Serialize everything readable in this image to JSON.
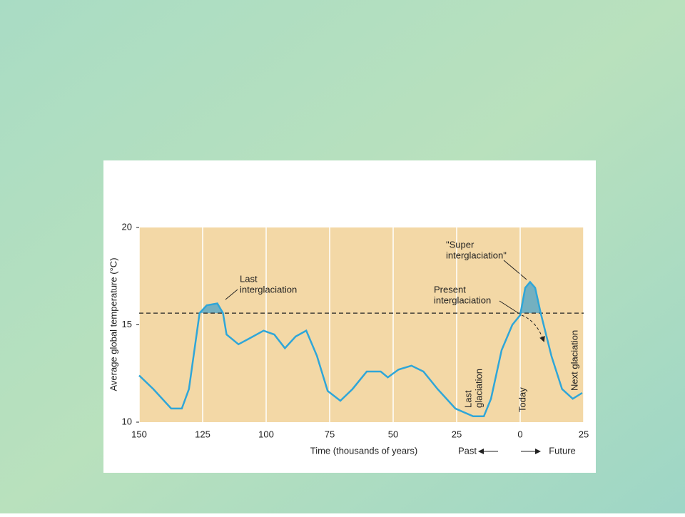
{
  "chart_data": {
    "type": "line",
    "x_label": "Time (thousands of years)",
    "y_label": "Average global temperature (°C)",
    "past_label": "Past",
    "future_label": "Future",
    "x": [
      150,
      144.4,
      137.4,
      133.2,
      130.4,
      126.2,
      123.4,
      119.2,
      117,
      115.6,
      110.9,
      106.6,
      101,
      96.8,
      92.6,
      88.4,
      84.2,
      80,
      75.8,
      70.8,
      66,
      60.4,
      54.9,
      52.1,
      47.9,
      42.8,
      38.1,
      32.5,
      25.5,
      18.5,
      14.3,
      11.5,
      7.3,
      3.1,
      0,
      -2,
      -3.9,
      -5.9,
      -8.1,
      -12.3,
      -16.5,
      -20.7,
      -24.4
    ],
    "series": [
      {
        "color": "#2fa6d8",
        "values": [
          12.4,
          11.7,
          10.7,
          10.7,
          11.7,
          15.6,
          16.0,
          16.1,
          15.6,
          14.5,
          14.0,
          14.3,
          14.7,
          14.5,
          13.8,
          14.4,
          14.7,
          13.4,
          11.6,
          11.1,
          11.7,
          12.6,
          12.6,
          12.3,
          12.7,
          12.9,
          12.6,
          11.7,
          10.7,
          10.3,
          10.3,
          11.2,
          13.7,
          15.0,
          15.5,
          16.9,
          17.2,
          16.9,
          15.6,
          13.4,
          11.7,
          11.2,
          11.5
        ]
      }
    ],
    "reference_line": 15.6,
    "xlim": [
      150,
      -25
    ],
    "xticks": [
      150,
      125,
      100,
      75,
      50,
      25,
      0,
      {
        "value": -25,
        "label": "25"
      }
    ],
    "ylim": [
      10,
      20
    ],
    "yticks": [
      10,
      15,
      20
    ],
    "grid": "x",
    "annotations": [
      {
        "lines": [
          "Last",
          "interglaciation"
        ]
      },
      {
        "lines": [
          "\"Super",
          "interglaciation\""
        ]
      },
      {
        "lines": [
          "Present",
          "interglaciation"
        ]
      },
      {
        "lines": [
          "Last",
          "glaciation"
        ]
      },
      {
        "lines": [
          "Today"
        ]
      },
      {
        "lines": [
          "Next glaciation"
        ]
      }
    ]
  }
}
